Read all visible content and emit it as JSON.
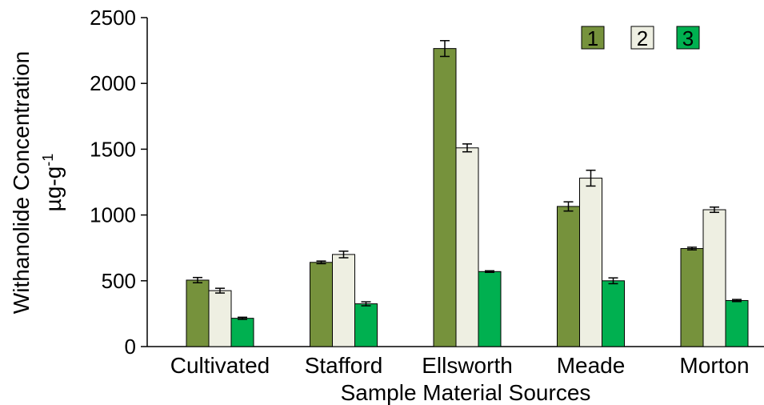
{
  "chart_data": {
    "type": "bar",
    "categories": [
      "Cultivated",
      "Stafford",
      "Ellsworth",
      "Meade",
      "Morton"
    ],
    "series": [
      {
        "name": "1",
        "color": "#76923c",
        "values": [
          505,
          640,
          2265,
          1065,
          745
        ],
        "errors": [
          20,
          10,
          60,
          35,
          10
        ]
      },
      {
        "name": "2",
        "color": "#eeefe2",
        "values": [
          425,
          700,
          1510,
          1280,
          1040
        ],
        "errors": [
          18,
          25,
          30,
          60,
          20
        ]
      },
      {
        "name": "3",
        "color": "#00b050",
        "values": [
          215,
          325,
          570,
          500,
          350
        ],
        "errors": [
          8,
          15,
          6,
          22,
          8
        ]
      }
    ],
    "xlabel": "Sample Material Sources",
    "ylabel_line1": "Withanolide Concentration",
    "ylabel_line2_base": "µg-g",
    "ylabel_line2_sup": "-1",
    "ylim": [
      0,
      2500
    ],
    "yticks": [
      0,
      500,
      1000,
      1500,
      2000,
      2500
    ],
    "grid": false,
    "legend_position": "top-right"
  }
}
